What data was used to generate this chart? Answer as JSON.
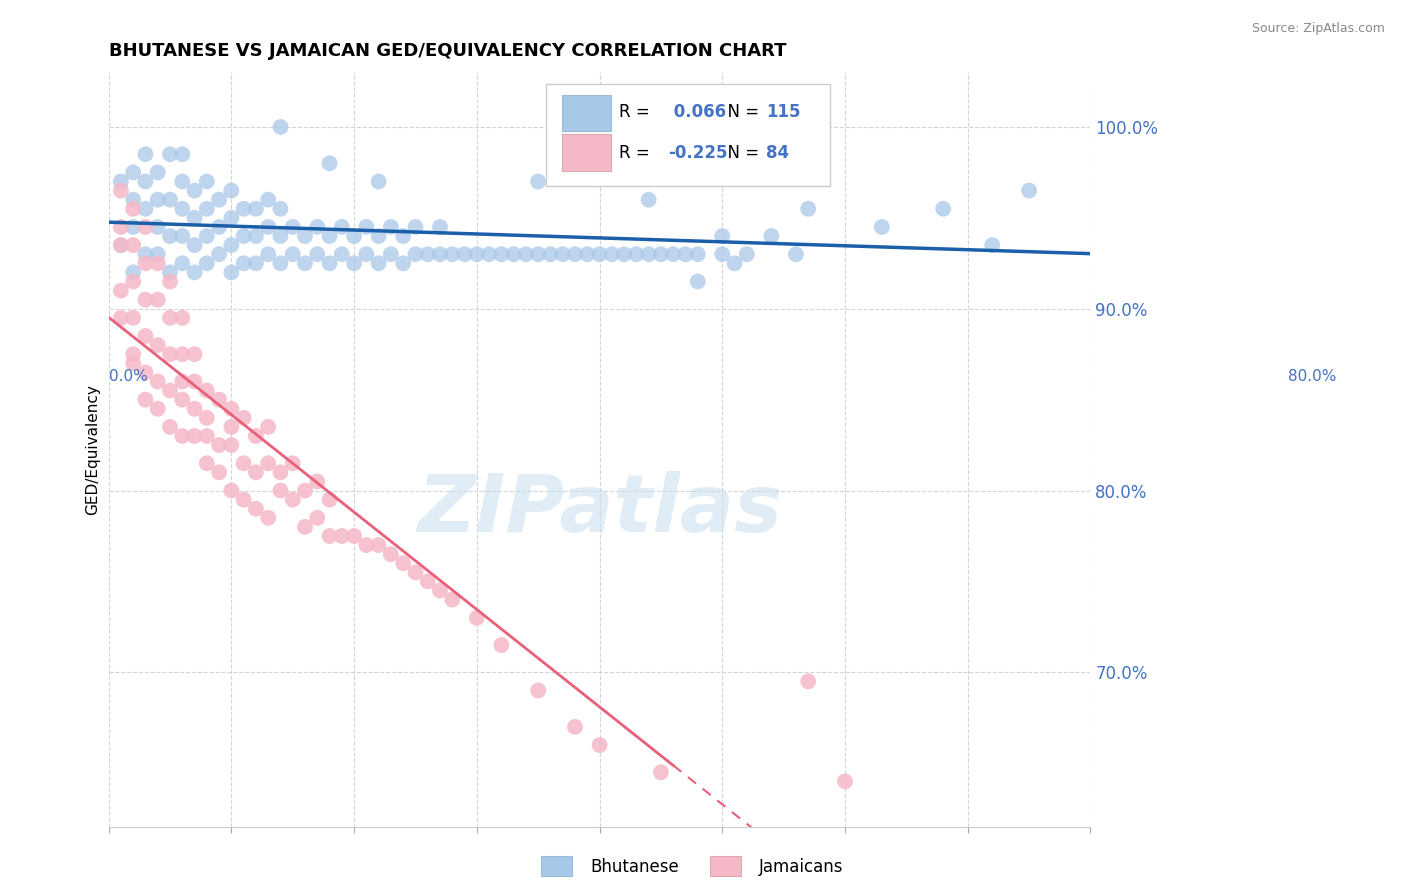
{
  "title": "BHUTANESE VS JAMAICAN GED/EQUIVALENCY CORRELATION CHART",
  "source": "Source: ZipAtlas.com",
  "ylabel": "GED/Equivalency",
  "y_ticks": [
    0.7,
    0.8,
    0.9,
    1.0
  ],
  "y_tick_labels": [
    "70.0%",
    "80.0%",
    "90.0%",
    "100.0%"
  ],
  "xlim": [
    0.0,
    0.8
  ],
  "ylim": [
    0.615,
    1.03
  ],
  "blue_R": "0.066",
  "blue_N": "115",
  "pink_R": "-0.225",
  "pink_N": "84",
  "blue_dot_color": "#a8c8e8",
  "pink_dot_color": "#f5b8c8",
  "blue_line_color": "#1a5fa8",
  "pink_line_color": "#e8607a",
  "axis_label_color": "#4472c4",
  "legend_blue_label": "Bhutanese",
  "legend_pink_label": "Jamaicans",
  "background_color": "#ffffff",
  "grid_color": "#d0d0d0",
  "watermark_text": "ZIPatlas",
  "pink_solid_xlim": 0.46,
  "blue_scatter_x": [
    0.01,
    0.01,
    0.02,
    0.02,
    0.02,
    0.02,
    0.03,
    0.03,
    0.03,
    0.03,
    0.04,
    0.04,
    0.04,
    0.04,
    0.05,
    0.05,
    0.05,
    0.05,
    0.06,
    0.06,
    0.06,
    0.06,
    0.06,
    0.07,
    0.07,
    0.07,
    0.07,
    0.08,
    0.08,
    0.08,
    0.08,
    0.09,
    0.09,
    0.09,
    0.1,
    0.1,
    0.1,
    0.1,
    0.11,
    0.11,
    0.11,
    0.12,
    0.12,
    0.12,
    0.13,
    0.13,
    0.13,
    0.14,
    0.14,
    0.14,
    0.15,
    0.15,
    0.16,
    0.16,
    0.17,
    0.17,
    0.18,
    0.18,
    0.19,
    0.19,
    0.2,
    0.2,
    0.21,
    0.21,
    0.22,
    0.22,
    0.23,
    0.23,
    0.24,
    0.24,
    0.25,
    0.25,
    0.26,
    0.27,
    0.27,
    0.28,
    0.29,
    0.3,
    0.31,
    0.32,
    0.33,
    0.34,
    0.35,
    0.36,
    0.37,
    0.38,
    0.39,
    0.4,
    0.41,
    0.42,
    0.43,
    0.44,
    0.45,
    0.46,
    0.47,
    0.48,
    0.5,
    0.52,
    0.54,
    0.56,
    0.35,
    0.38,
    0.14,
    0.18,
    0.22,
    0.57,
    0.63,
    0.68,
    0.72,
    0.75,
    0.48,
    0.51,
    0.44,
    0.46,
    0.5
  ],
  "blue_scatter_y": [
    0.935,
    0.97,
    0.945,
    0.96,
    0.975,
    0.92,
    0.93,
    0.955,
    0.97,
    0.985,
    0.93,
    0.945,
    0.96,
    0.975,
    0.92,
    0.94,
    0.96,
    0.985,
    0.925,
    0.94,
    0.955,
    0.97,
    0.985,
    0.92,
    0.935,
    0.95,
    0.965,
    0.925,
    0.94,
    0.955,
    0.97,
    0.93,
    0.945,
    0.96,
    0.92,
    0.935,
    0.95,
    0.965,
    0.925,
    0.94,
    0.955,
    0.925,
    0.94,
    0.955,
    0.93,
    0.945,
    0.96,
    0.925,
    0.94,
    0.955,
    0.93,
    0.945,
    0.925,
    0.94,
    0.93,
    0.945,
    0.925,
    0.94,
    0.93,
    0.945,
    0.925,
    0.94,
    0.93,
    0.945,
    0.925,
    0.94,
    0.93,
    0.945,
    0.925,
    0.94,
    0.93,
    0.945,
    0.93,
    0.93,
    0.945,
    0.93,
    0.93,
    0.93,
    0.93,
    0.93,
    0.93,
    0.93,
    0.93,
    0.93,
    0.93,
    0.93,
    0.93,
    0.93,
    0.93,
    0.93,
    0.93,
    0.93,
    0.93,
    0.93,
    0.93,
    0.93,
    0.94,
    0.93,
    0.94,
    0.93,
    0.97,
    0.99,
    1.0,
    0.98,
    0.97,
    0.955,
    0.945,
    0.955,
    0.935,
    0.965,
    0.915,
    0.925,
    0.96,
    0.975,
    0.93
  ],
  "pink_scatter_x": [
    0.01,
    0.01,
    0.01,
    0.01,
    0.01,
    0.02,
    0.02,
    0.02,
    0.02,
    0.02,
    0.02,
    0.03,
    0.03,
    0.03,
    0.03,
    0.03,
    0.03,
    0.04,
    0.04,
    0.04,
    0.04,
    0.04,
    0.05,
    0.05,
    0.05,
    0.05,
    0.05,
    0.06,
    0.06,
    0.06,
    0.06,
    0.06,
    0.07,
    0.07,
    0.07,
    0.07,
    0.08,
    0.08,
    0.08,
    0.08,
    0.09,
    0.09,
    0.09,
    0.1,
    0.1,
    0.1,
    0.1,
    0.11,
    0.11,
    0.11,
    0.12,
    0.12,
    0.12,
    0.13,
    0.13,
    0.13,
    0.14,
    0.14,
    0.15,
    0.15,
    0.16,
    0.16,
    0.17,
    0.17,
    0.18,
    0.18,
    0.19,
    0.2,
    0.21,
    0.22,
    0.23,
    0.24,
    0.25,
    0.26,
    0.27,
    0.28,
    0.3,
    0.32,
    0.35,
    0.38,
    0.4,
    0.45,
    0.57,
    0.6
  ],
  "pink_scatter_y": [
    0.935,
    0.91,
    0.945,
    0.895,
    0.965,
    0.895,
    0.915,
    0.875,
    0.935,
    0.955,
    0.87,
    0.885,
    0.905,
    0.85,
    0.925,
    0.865,
    0.945,
    0.88,
    0.845,
    0.905,
    0.86,
    0.925,
    0.835,
    0.875,
    0.895,
    0.855,
    0.915,
    0.85,
    0.875,
    0.83,
    0.895,
    0.86,
    0.845,
    0.875,
    0.83,
    0.86,
    0.83,
    0.855,
    0.815,
    0.84,
    0.825,
    0.85,
    0.81,
    0.825,
    0.845,
    0.8,
    0.835,
    0.815,
    0.84,
    0.795,
    0.81,
    0.83,
    0.79,
    0.815,
    0.835,
    0.785,
    0.81,
    0.8,
    0.795,
    0.815,
    0.78,
    0.8,
    0.785,
    0.805,
    0.775,
    0.795,
    0.775,
    0.775,
    0.77,
    0.77,
    0.765,
    0.76,
    0.755,
    0.75,
    0.745,
    0.74,
    0.73,
    0.715,
    0.69,
    0.67,
    0.66,
    0.645,
    0.695,
    0.64
  ]
}
